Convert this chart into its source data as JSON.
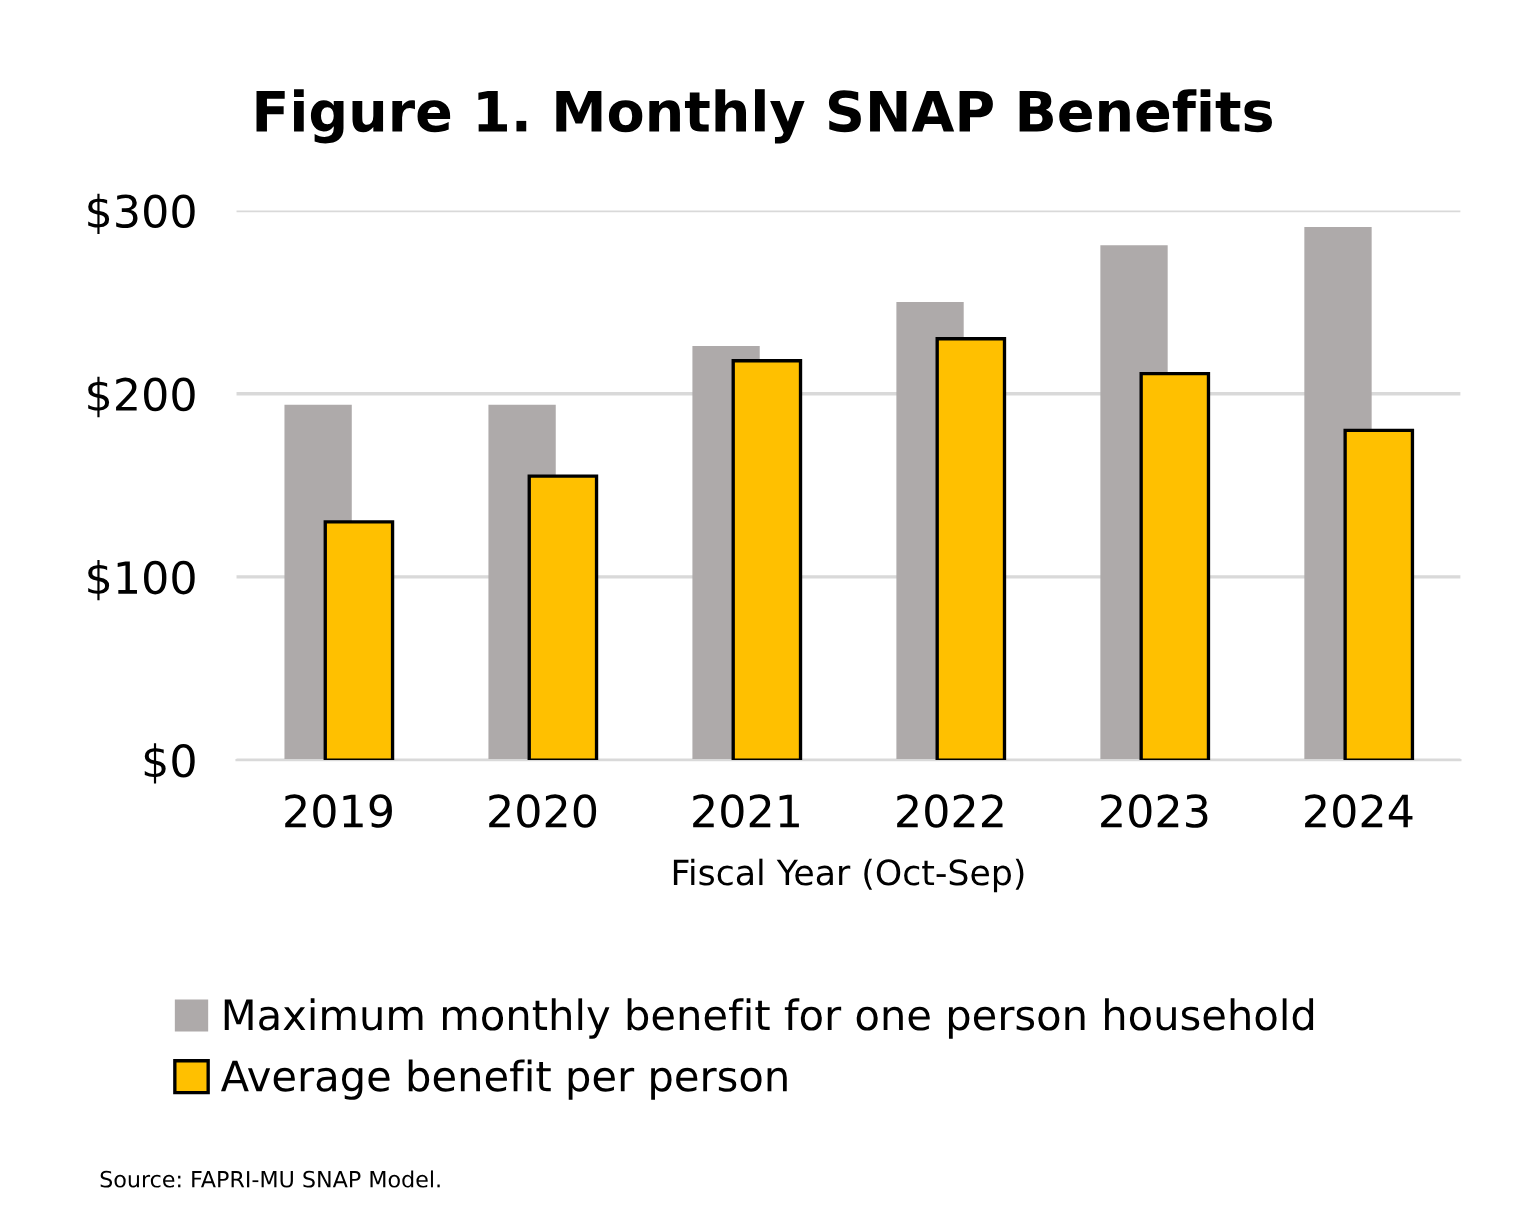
{
  "chart_data": {
    "type": "bar",
    "title": "Figure 1. Monthly SNAP Benefits",
    "xlabel": "Fiscal Year (Oct-Sep)",
    "categories": [
      "2019",
      "2020",
      "2021",
      "2022",
      "2023",
      "2024"
    ],
    "series": [
      {
        "name": "Maximum monthly benefit for one person household",
        "color": "#aeaaaa",
        "values": [
          194,
          194,
          226,
          250,
          281,
          291
        ]
      },
      {
        "name": "Average benefit per person",
        "color": "#ffc000",
        "values": [
          130,
          155,
          218,
          230,
          211,
          180
        ]
      }
    ],
    "ylim": [
      0,
      300
    ],
    "yticks": [
      {
        "value": 0,
        "label": "$0"
      },
      {
        "value": 100,
        "label": "$100"
      },
      {
        "value": 200,
        "label": "$200"
      },
      {
        "value": 300,
        "label": "$300"
      }
    ],
    "grid": "y",
    "legend": "bottom",
    "annotations": [
      "Source: FAPRI-MU SNAP Model."
    ]
  }
}
